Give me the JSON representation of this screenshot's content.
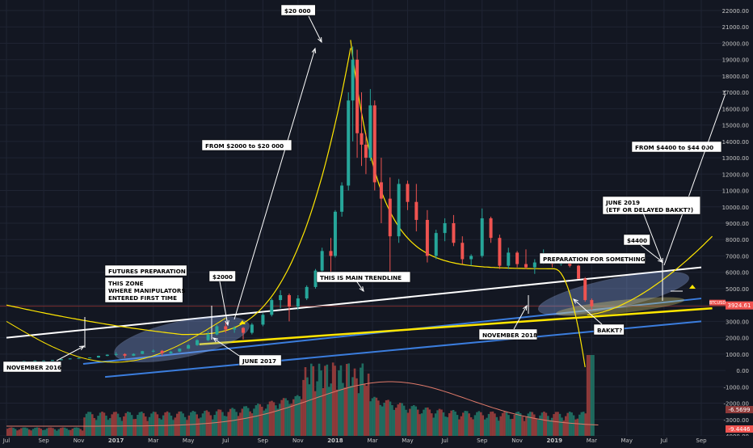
{
  "colors": {
    "background": "#131722",
    "grid": "#1f2433",
    "axis_text": "#c7c7c7",
    "candle_up": "#26a69a",
    "candle_down": "#ef5350",
    "volume_up": "#1f6b5f",
    "volume_down": "#8e3a3a",
    "curve": "#ffe600",
    "main_trendline": "#ffffff",
    "channel": "#3b7ddd",
    "support": "#ffe600",
    "ma": "#e07a6a",
    "price_tag": "#ef5350",
    "label_bg": "#ffffff",
    "label_text": "#000000"
  },
  "price_axis": {
    "ticks": [
      "22000.00",
      "21000.00",
      "20000.00",
      "19000.00",
      "18000.00",
      "17000.00",
      "16000.00",
      "15000.00",
      "14000.00",
      "13000.00",
      "12000.00",
      "11000.00",
      "10000.00",
      "9000.00",
      "8000.00",
      "7000.00",
      "6000.00",
      "5000.00",
      "4000.00",
      "3000.00",
      "2000.00",
      "1000.00",
      "0.00",
      "-1000.00",
      "-2000.00",
      "-3000.00",
      "-4000.00"
    ],
    "current_price": "3924.61",
    "symbol_tag": "BTCUSD",
    "lower_tags": [
      "-6.5699",
      "-9.4446"
    ]
  },
  "time_axis": {
    "ticks": [
      "Jul",
      "Sep",
      "Nov",
      "2017",
      "Mar",
      "May",
      "Jul",
      "Sep",
      "Nov",
      "2018",
      "Mar",
      "May",
      "Jul",
      "Sep",
      "Nov",
      "2019",
      "Mar",
      "May",
      "Jul",
      "Sep"
    ]
  },
  "annotations": {
    "peak": "$20 000",
    "from_2000": "FROM $2000 to $20 000",
    "from_4400": "FROM $4400 to $44 000",
    "june_2019": "JUNE 2019\n(ETF OR DELAYED BAKKT?)",
    "price_4400": "$4400",
    "preparation": "PREPARATION FOR SOMETHING",
    "main_trendline": "THIS IS MAIN TRENDLINE",
    "futures_prep": "FUTURES PREPARATION",
    "zone": "THIS ZONE\nWHERE MANIPULATORS\nENTERED FIRST TIME",
    "price_2000": "$2000",
    "nov_2016": "NOVEMBER 2016",
    "june_2017": "JUNE 2017",
    "nov_2018": "NOVEMBER 2018",
    "bakkt": "BAKKT?"
  },
  "chart_data": {
    "type": "candlestick",
    "title": "",
    "ylim": [
      -4500,
      22500
    ],
    "grid": true,
    "candles": [
      [
        2016.58,
        575,
        590,
        560,
        580
      ],
      [
        2016.63,
        580,
        610,
        570,
        600
      ],
      [
        2016.67,
        600,
        615,
        595,
        605
      ],
      [
        2016.71,
        605,
        640,
        600,
        630
      ],
      [
        2016.75,
        630,
        700,
        620,
        690
      ],
      [
        2016.79,
        690,
        740,
        680,
        730
      ],
      [
        2016.83,
        730,
        780,
        720,
        760
      ],
      [
        2016.88,
        760,
        800,
        750,
        790
      ],
      [
        2016.92,
        790,
        900,
        780,
        890
      ],
      [
        2016.96,
        890,
        980,
        870,
        960
      ],
      [
        2017.0,
        960,
        1120,
        900,
        1000
      ],
      [
        2017.04,
        1000,
        1050,
        760,
        900
      ],
      [
        2017.08,
        900,
        1050,
        880,
        1010
      ],
      [
        2017.12,
        1010,
        1200,
        1000,
        1180
      ],
      [
        2017.17,
        1180,
        1280,
        1100,
        1200
      ],
      [
        2017.21,
        1200,
        1250,
        900,
        1050
      ],
      [
        2017.25,
        1050,
        1200,
        1000,
        1150
      ],
      [
        2017.29,
        1150,
        1350,
        1130,
        1330
      ],
      [
        2017.33,
        1330,
        1600,
        1320,
        1550
      ],
      [
        2017.37,
        1550,
        1900,
        1500,
        1850
      ],
      [
        2017.42,
        1850,
        2400,
        1800,
        2200
      ],
      [
        2017.46,
        2200,
        2800,
        2150,
        2700
      ],
      [
        2017.5,
        2700,
        2950,
        2300,
        2500
      ],
      [
        2017.54,
        2500,
        2700,
        2300,
        2600
      ],
      [
        2017.58,
        2600,
        2650,
        1900,
        2300
      ],
      [
        2017.62,
        2300,
        2900,
        2200,
        2800
      ],
      [
        2017.67,
        2800,
        3500,
        2700,
        3400
      ],
      [
        2017.71,
        3400,
        4400,
        3300,
        4300
      ],
      [
        2017.75,
        4300,
        4900,
        3800,
        4600
      ],
      [
        2017.79,
        4600,
        4700,
        3000,
        3900
      ],
      [
        2017.83,
        3900,
        4600,
        3700,
        4400
      ],
      [
        2017.87,
        4400,
        5200,
        4300,
        5100
      ],
      [
        2017.91,
        5100,
        6200,
        5000,
        6100
      ],
      [
        2017.94,
        6100,
        7500,
        5700,
        7300
      ],
      [
        2017.98,
        7300,
        8100,
        6000,
        7000
      ],
      [
        2018.0,
        7000,
        9800,
        6900,
        9700
      ],
      [
        2018.03,
        9700,
        11500,
        9400,
        11300
      ],
      [
        2018.06,
        11300,
        17000,
        11000,
        16500
      ],
      [
        2018.08,
        16500,
        19800,
        14000,
        19000
      ],
      [
        2018.1,
        19000,
        19600,
        13000,
        14500
      ],
      [
        2018.12,
        14500,
        17000,
        12500,
        13800
      ],
      [
        2018.14,
        13800,
        14500,
        12000,
        13000
      ],
      [
        2018.16,
        13000,
        17200,
        12800,
        16200
      ],
      [
        2018.18,
        16200,
        16500,
        11000,
        11500
      ],
      [
        2018.21,
        11500,
        13000,
        9000,
        10500
      ],
      [
        2018.25,
        10500,
        11800,
        6000,
        8200
      ],
      [
        2018.29,
        8200,
        11700,
        7800,
        11400
      ],
      [
        2018.33,
        11400,
        11600,
        9800,
        10300
      ],
      [
        2018.37,
        10300,
        11400,
        8500,
        9200
      ],
      [
        2018.42,
        9200,
        9800,
        6600,
        7000
      ],
      [
        2018.46,
        7000,
        8600,
        6800,
        8400
      ],
      [
        2018.5,
        8400,
        9300,
        7900,
        9000
      ],
      [
        2018.54,
        9000,
        9500,
        7600,
        7800
      ],
      [
        2018.58,
        7800,
        8200,
        6500,
        6800
      ],
      [
        2018.62,
        6800,
        7100,
        6400,
        7000
      ],
      [
        2018.67,
        7000,
        9900,
        6900,
        9300
      ],
      [
        2018.71,
        9300,
        9400,
        7800,
        8100
      ],
      [
        2018.75,
        8100,
        8300,
        6200,
        6400
      ],
      [
        2018.79,
        6400,
        7500,
        6200,
        7200
      ],
      [
        2018.83,
        7200,
        7300,
        6300,
        6500
      ],
      [
        2018.87,
        6500,
        7400,
        6200,
        6300
      ],
      [
        2018.91,
        6300,
        6800,
        5900,
        6600
      ],
      [
        2018.95,
        6600,
        7400,
        6500,
        6900
      ],
      [
        2018.99,
        6900,
        7000,
        6300,
        6500
      ],
      [
        2019.03,
        6500,
        6700,
        6400,
        6550
      ],
      [
        2019.07,
        6550,
        6600,
        6300,
        6400
      ],
      [
        2019.11,
        6400,
        6450,
        5700,
        5600
      ],
      [
        2019.14,
        5600,
        5700,
        4200,
        4300
      ],
      [
        2019.17,
        4300,
        4400,
        3700,
        3920
      ]
    ]
  }
}
